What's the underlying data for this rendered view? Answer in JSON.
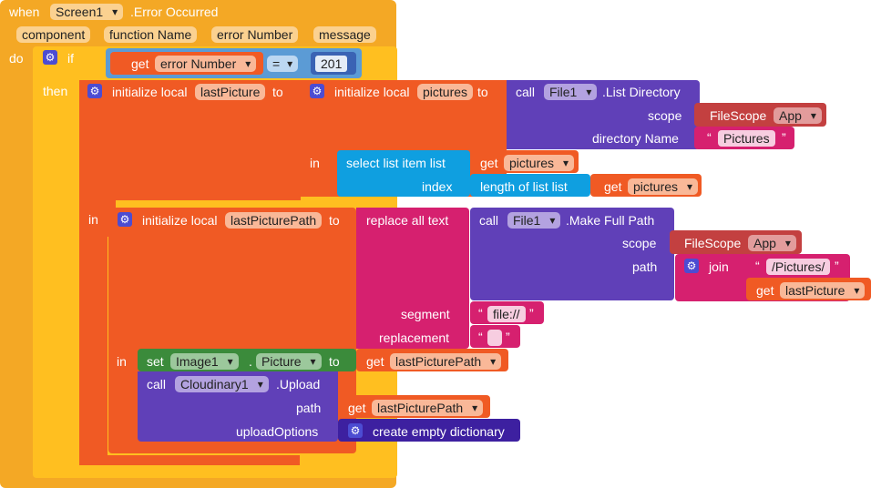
{
  "event": {
    "when_label": "when",
    "component": "Screen1",
    "event_name": ".Error Occurred",
    "params": [
      "component",
      "function Name",
      "error Number",
      "message"
    ],
    "do_label": "do"
  },
  "if_block": {
    "if_label": "if",
    "then_label": "then",
    "get_label": "get",
    "var": "error Number",
    "op": "=",
    "number": "201"
  },
  "init1": {
    "label": "initialize local",
    "name": "lastPicture",
    "to_label": "to",
    "in_label": "in"
  },
  "init2": {
    "label": "initialize local",
    "name": "pictures",
    "to_label": "to",
    "in_label": "in"
  },
  "list_dir": {
    "call_label": "call",
    "component": "File1",
    "method": ".List Directory",
    "scope_label": "scope",
    "scope_block": "FileScope",
    "scope_value": "App",
    "dir_label": "directory Name",
    "dir_value": "Pictures"
  },
  "select_item": {
    "label": "select list item  list",
    "get_label": "get",
    "var": "pictures",
    "index_label": "index",
    "length_label": "length of list  list",
    "len_get": "get",
    "len_var": "pictures"
  },
  "init3": {
    "label": "initialize local",
    "name": "lastPicturePath",
    "to_label": "to",
    "in_label": "in"
  },
  "replace": {
    "label": "replace all text",
    "segment_label": "segment",
    "segment_value": "file://",
    "replacement_label": "replacement"
  },
  "full_path": {
    "call_label": "call",
    "component": "File1",
    "method": ".Make Full Path",
    "scope_label": "scope",
    "scope_block": "FileScope",
    "scope_value": "App",
    "path_label": "path",
    "join_label": "join",
    "join_text": "/Pictures/",
    "get_label": "get",
    "get_var": "lastPicture"
  },
  "set_block": {
    "set_label": "set",
    "component": "Image1",
    "dot": ".",
    "property": "Picture",
    "to_label": "to",
    "get_label": "get",
    "var": "lastPicturePath"
  },
  "upload": {
    "call_label": "call",
    "component": "Cloudinary1",
    "method": ".Upload",
    "path_label": "path",
    "get_label": "get",
    "var": "lastPicturePath",
    "options_label": "uploadOptions",
    "dict_label": "create empty dictionary"
  },
  "colors": {
    "event": "#f4a825",
    "control": "#ffbf20",
    "variable": "#f05a24",
    "logic": "#5b9bd5",
    "procedure": "#6040b8",
    "list": "#0f9fe0",
    "text": "#d6206f",
    "scope": "#c34040",
    "setter": "#3b8b3b",
    "dictionary": "#3d20a0"
  }
}
